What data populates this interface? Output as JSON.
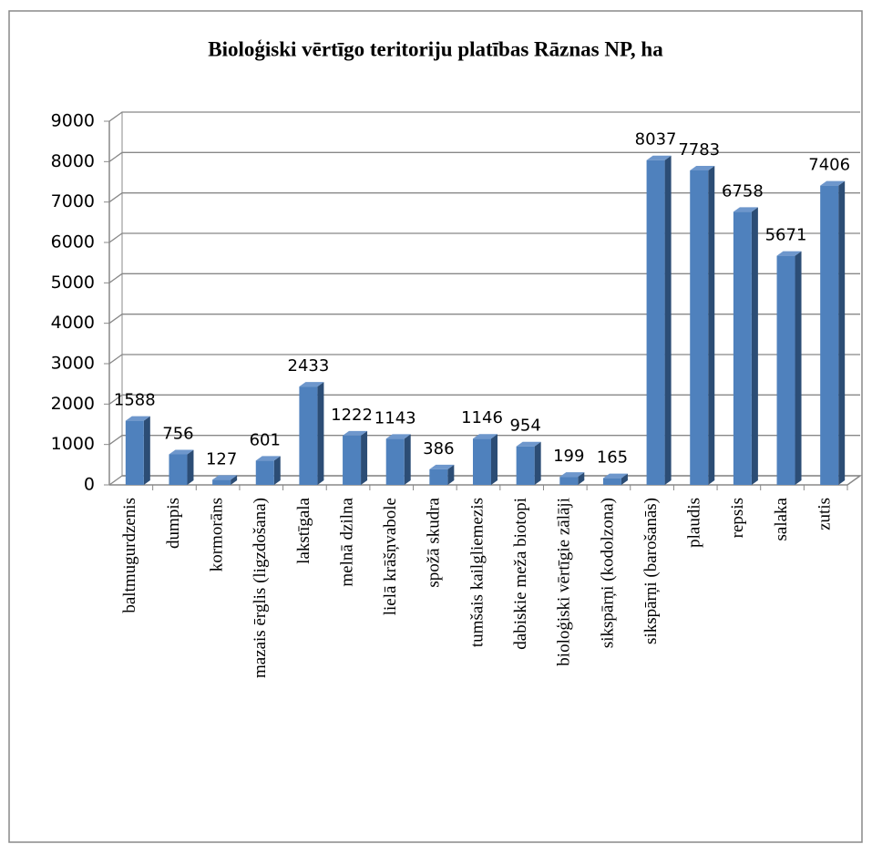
{
  "chart_data": {
    "type": "bar3d",
    "title": "Bioloģiski vērtīgo teritoriju platības Rāznas NP, ha",
    "categories": [
      "baltmugurdzenis",
      "dumpis",
      "kormorāns",
      "mazais ērglis (ligzdošana)",
      "lakstīgala",
      "melnā dzilna",
      "lielā krāšņvabole",
      "spožā skudra",
      "tumšais kailgliemezis",
      "dabiskie meža biotopi",
      "bioloģiski vērtīgie zālāji",
      "sikspārņi (kodolzona)",
      "sikspārņi (barošanās)",
      "plaudis",
      "repsis",
      "salaka",
      "zutis"
    ],
    "values": [
      1588,
      756,
      127,
      601,
      2433,
      1222,
      1143,
      386,
      1146,
      954,
      199,
      165,
      8037,
      7783,
      6758,
      5671,
      7406
    ],
    "color": "#4f81bd",
    "ylim": [
      0,
      9000
    ],
    "yticks": [
      0,
      1000,
      2000,
      3000,
      4000,
      5000,
      6000,
      7000,
      8000,
      9000
    ],
    "grid": true
  }
}
